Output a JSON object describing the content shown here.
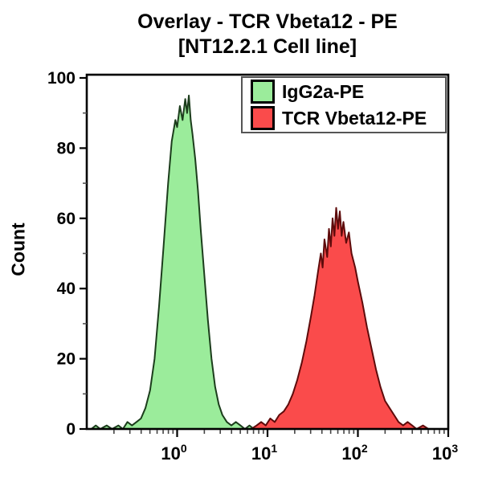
{
  "figure": {
    "title_line1": "Overlay - TCR Vbeta12 - PE",
    "title_line2": "[NT12.2.1 Cell line]",
    "y_axis_label": "Count"
  },
  "legend": {
    "position": "top-right-inside",
    "items": [
      {
        "label": "IgG2a-PE",
        "fill": "#9BEC9B",
        "outline": "#1C3D1C"
      },
      {
        "label": "TCR Vbeta12-PE",
        "fill": "#FA4B4B",
        "outline": "#5E0B0B"
      }
    ]
  },
  "chart_data": {
    "type": "area",
    "subtype": "flow-cytometry-overlay-histogram",
    "title": "Overlay - TCR Vbeta12 - PE [NT12.2.1 Cell line]",
    "xlabel": "",
    "ylabel": "Count",
    "x_scale": "log10",
    "xlim_log10": [
      -1,
      3
    ],
    "ylim": [
      0,
      100
    ],
    "grid": false,
    "y_major_ticks": [
      0,
      20,
      40,
      60,
      80,
      100
    ],
    "y_minor_ticks": [
      10,
      30,
      50,
      70,
      90
    ],
    "x_major_ticks": [
      {
        "log10": 0,
        "base": "10",
        "exp": "0"
      },
      {
        "log10": 1,
        "base": "10",
        "exp": "1"
      },
      {
        "log10": 2,
        "base": "10",
        "exp": "2"
      },
      {
        "log10": 3,
        "base": "10",
        "exp": "3"
      }
    ],
    "series": [
      {
        "name": "IgG2a-PE",
        "fill": "#9BEC9B",
        "outline": "#1C3D1C",
        "peak": {
          "x_approx": 1.3,
          "count_approx": 95
        },
        "points_log10x_count": [
          [
            -0.95,
            0
          ],
          [
            -0.9,
            1
          ],
          [
            -0.85,
            0
          ],
          [
            -0.78,
            1
          ],
          [
            -0.72,
            0
          ],
          [
            -0.65,
            1
          ],
          [
            -0.6,
            0
          ],
          [
            -0.55,
            2
          ],
          [
            -0.5,
            1
          ],
          [
            -0.45,
            2
          ],
          [
            -0.4,
            3
          ],
          [
            -0.35,
            6
          ],
          [
            -0.3,
            11
          ],
          [
            -0.25,
            20
          ],
          [
            -0.2,
            35
          ],
          [
            -0.15,
            52
          ],
          [
            -0.1,
            70
          ],
          [
            -0.06,
            82
          ],
          [
            -0.02,
            88
          ],
          [
            0.0,
            86
          ],
          [
            0.03,
            92
          ],
          [
            0.06,
            88
          ],
          [
            0.09,
            94
          ],
          [
            0.11,
            90
          ],
          [
            0.13,
            95
          ],
          [
            0.15,
            88
          ],
          [
            0.17,
            84
          ],
          [
            0.2,
            77
          ],
          [
            0.23,
            68
          ],
          [
            0.26,
            57
          ],
          [
            0.3,
            44
          ],
          [
            0.34,
            31
          ],
          [
            0.38,
            20
          ],
          [
            0.42,
            12
          ],
          [
            0.46,
            7
          ],
          [
            0.5,
            4
          ],
          [
            0.55,
            2
          ],
          [
            0.6,
            1
          ],
          [
            0.65,
            2
          ],
          [
            0.7,
            1
          ],
          [
            0.75,
            0
          ],
          [
            0.8,
            1
          ],
          [
            0.85,
            0
          ]
        ]
      },
      {
        "name": "TCR Vbeta12-PE",
        "fill": "#FA4B4B",
        "outline": "#5E0B0B",
        "peak": {
          "x_approx": 55,
          "count_approx": 63
        },
        "points_log10x_count": [
          [
            0.82,
            0
          ],
          [
            0.88,
            1
          ],
          [
            0.93,
            2
          ],
          [
            0.98,
            1
          ],
          [
            1.03,
            3
          ],
          [
            1.08,
            2
          ],
          [
            1.13,
            4
          ],
          [
            1.18,
            5
          ],
          [
            1.23,
            7
          ],
          [
            1.28,
            10
          ],
          [
            1.33,
            14
          ],
          [
            1.38,
            19
          ],
          [
            1.43,
            25
          ],
          [
            1.48,
            32
          ],
          [
            1.52,
            38
          ],
          [
            1.56,
            45
          ],
          [
            1.59,
            50
          ],
          [
            1.61,
            46
          ],
          [
            1.63,
            54
          ],
          [
            1.66,
            49
          ],
          [
            1.68,
            57
          ],
          [
            1.7,
            52
          ],
          [
            1.72,
            60
          ],
          [
            1.74,
            55
          ],
          [
            1.76,
            63
          ],
          [
            1.78,
            57
          ],
          [
            1.8,
            62
          ],
          [
            1.82,
            55
          ],
          [
            1.84,
            59
          ],
          [
            1.87,
            53
          ],
          [
            1.9,
            56
          ],
          [
            1.93,
            50
          ],
          [
            1.97,
            46
          ],
          [
            2.0,
            42
          ],
          [
            2.05,
            36
          ],
          [
            2.1,
            29
          ],
          [
            2.15,
            23
          ],
          [
            2.2,
            17
          ],
          [
            2.25,
            12
          ],
          [
            2.3,
            8
          ],
          [
            2.35,
            6
          ],
          [
            2.4,
            4
          ],
          [
            2.45,
            2
          ],
          [
            2.5,
            1
          ],
          [
            2.55,
            2
          ],
          [
            2.6,
            1
          ],
          [
            2.65,
            0
          ],
          [
            2.72,
            1
          ],
          [
            2.78,
            0
          ]
        ]
      }
    ]
  }
}
